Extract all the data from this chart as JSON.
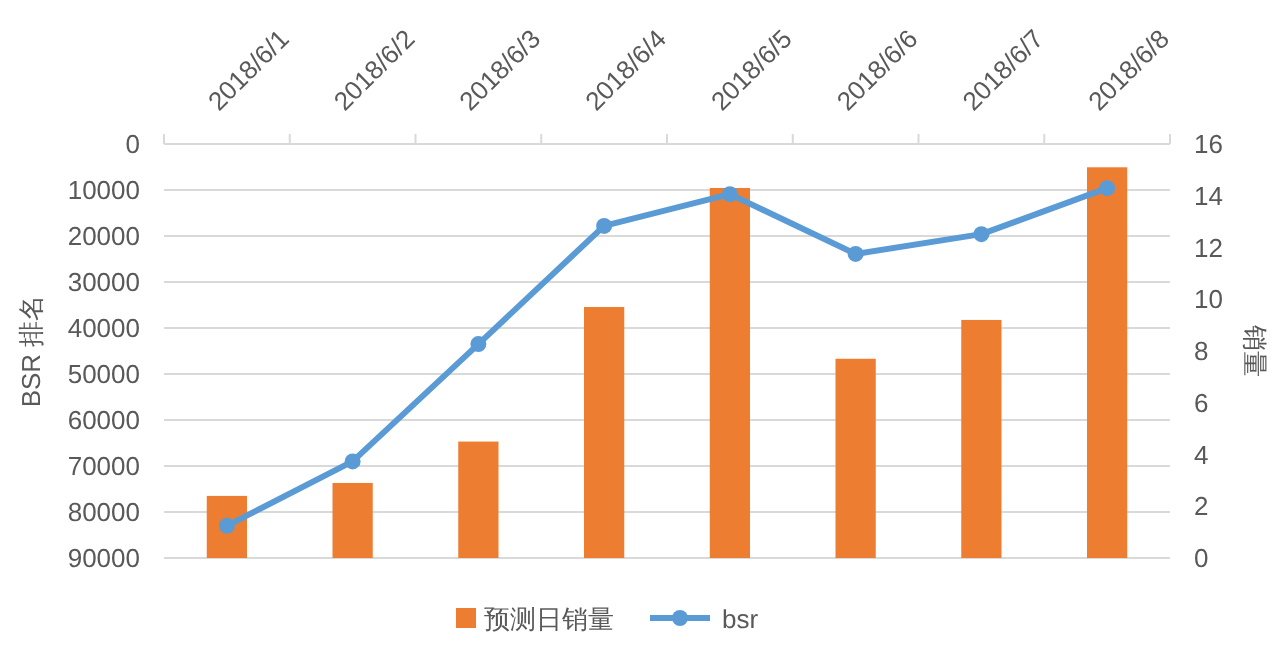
{
  "chart_data": {
    "type": "bar",
    "categories": [
      "2018/6/1",
      "2018/6/2",
      "2018/6/3",
      "2018/6/4",
      "2018/6/5",
      "2018/6/6",
      "2018/6/7",
      "2018/6/8"
    ],
    "series": [
      {
        "name": "预测日销量",
        "axis": "y2",
        "color": "#ed7d31",
        "values": [
          2.4,
          2.9,
          4.5,
          9.7,
          14.3,
          7.7,
          9.2,
          15.1
        ]
      },
      {
        "name": "bsr",
        "type": "line",
        "color": "#5b9bd5",
        "marker": "circle",
        "values": [
          83000,
          69000,
          43500,
          17800,
          10900,
          23900,
          19600,
          9600
        ]
      }
    ],
    "ylabel": "BSR 排名",
    "y2label": "销量",
    "ylim": [
      90000,
      0
    ],
    "yticks": [
      0,
      10000,
      20000,
      30000,
      40000,
      50000,
      60000,
      70000,
      80000,
      90000
    ],
    "y2lim": [
      0,
      16
    ],
    "y2ticks": [
      0,
      2,
      4,
      6,
      8,
      10,
      12,
      14,
      16
    ],
    "grid": "y",
    "legend": "bottom"
  }
}
